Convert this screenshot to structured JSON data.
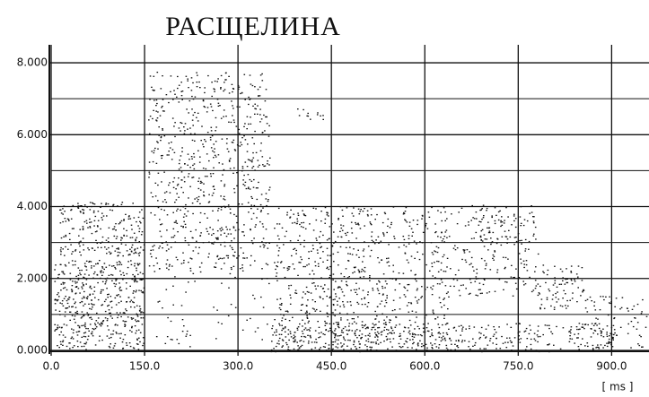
{
  "chart_data": {
    "type": "spectrogram",
    "title": "РАСЩЕЛИНА",
    "xlabel": "[ ms ]",
    "xlim": [
      0,
      960
    ],
    "ylim": [
      0,
      8.5
    ],
    "xticks": [
      {
        "value": 0,
        "label": "0.0"
      },
      {
        "value": 150,
        "label": "150.0"
      },
      {
        "value": 300,
        "label": "300.0"
      },
      {
        "value": 450,
        "label": "450.0"
      },
      {
        "value": 600,
        "label": "600.0"
      },
      {
        "value": 750,
        "label": "750.0"
      },
      {
        "value": 900,
        "label": "900.0"
      }
    ],
    "yticks": [
      {
        "value": 0,
        "label": "0.000"
      },
      {
        "value": 2,
        "label": "2.000"
      },
      {
        "value": 4,
        "label": "4.000"
      },
      {
        "value": 6,
        "label": "6.000"
      },
      {
        "value": 8,
        "label": "8.000"
      }
    ],
    "yminor": [
      1,
      3,
      5,
      7
    ],
    "grid": true,
    "color": "#111"
  }
}
